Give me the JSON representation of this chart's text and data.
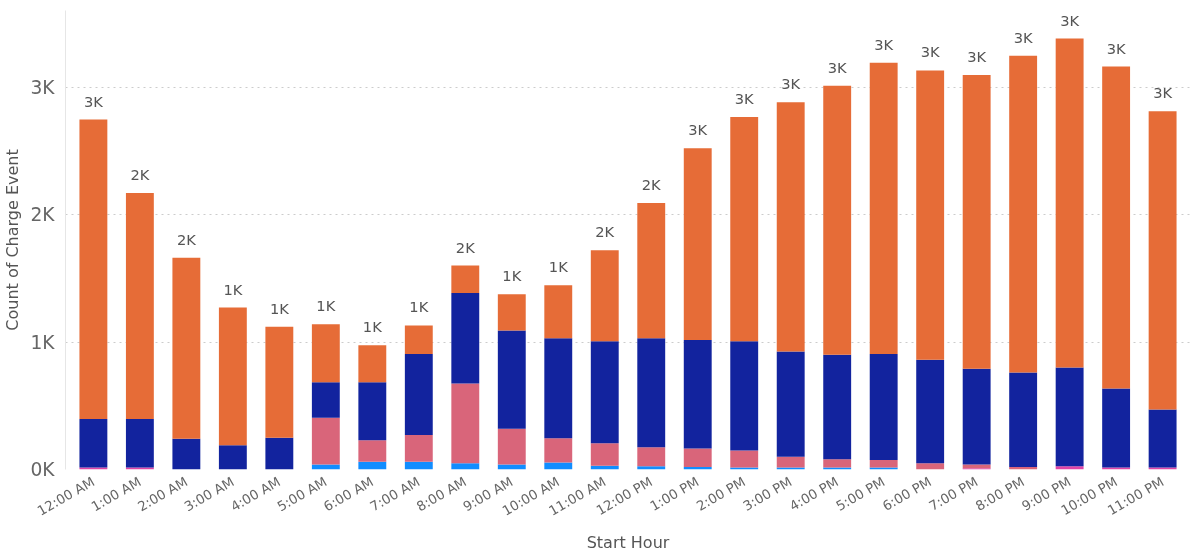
{
  "chart_data": {
    "type": "bar",
    "stacked": true,
    "xlabel": "Start Hour",
    "ylabel": "Count of Charge Event",
    "categories": [
      "12:00 AM",
      "1:00 AM",
      "2:00 AM",
      "3:00 AM",
      "4:00 AM",
      "5:00 AM",
      "6:00 AM",
      "7:00 AM",
      "8:00 AM",
      "9:00 AM",
      "10:00 AM",
      "11:00 AM",
      "12:00 PM",
      "1:00 PM",
      "2:00 PM",
      "3:00 PM",
      "4:00 PM",
      "5:00 PM",
      "6:00 PM",
      "7:00 PM",
      "8:00 PM",
      "9:00 PM",
      "10:00 PM",
      "11:00 PM"
    ],
    "series": [
      {
        "color": "#118dff",
        "values": [
          0,
          0,
          0,
          0,
          0,
          40,
          60,
          60,
          50,
          40,
          55,
          30,
          25,
          20,
          15,
          15,
          15,
          15,
          null,
          0,
          0,
          0,
          0,
          0
        ]
      },
      {
        "color": "#e044a7",
        "values": [
          15,
          15,
          null,
          0,
          0,
          0,
          0,
          0,
          0,
          0,
          0,
          0,
          0,
          0,
          0,
          0,
          0,
          0,
          0,
          10,
          null,
          25,
          15,
          15
        ]
      },
      {
        "color": "#d9657a",
        "values": [
          0,
          0,
          0,
          0,
          0,
          365,
          170,
          210,
          625,
          280,
          190,
          175,
          150,
          145,
          135,
          85,
          65,
          60,
          50,
          30,
          20,
          0,
          0,
          0
        ]
      },
      {
        "color": "#12239e",
        "values": [
          381,
          381,
          242,
          190,
          250,
          280,
          455,
          635,
          710,
          770,
          785,
          800,
          855,
          850,
          855,
          825,
          820,
          830,
          810,
          750,
          740,
          775,
          620,
          455
        ]
      },
      {
        "color": "#e66c37",
        "values": [
          2349,
          1772,
          1418,
          1080,
          870,
          455,
          290,
          225,
          215,
          285,
          415,
          715,
          1060,
          1505,
          1760,
          1955,
          2110,
          2285,
          2270,
          2305,
          2485,
          2580,
          2525,
          2340
        ]
      }
    ],
    "totals": [
      "3K",
      "2K",
      "2K",
      "1K",
      "1K",
      "1K",
      "1K",
      "1K",
      "2K",
      "1K",
      "1K",
      "2K",
      "2K",
      "3K",
      "3K",
      "3K",
      "3K",
      "3K",
      "3K",
      "3K",
      "3K",
      "3K",
      "3K",
      "3K"
    ],
    "ylim": [
      0,
      3600
    ],
    "yticks": [
      {
        "value": 0,
        "label": "0K"
      },
      {
        "value": 1000,
        "label": "1K"
      },
      {
        "value": 2000,
        "label": "2K"
      },
      {
        "value": 3000,
        "label": "3K"
      }
    ],
    "grid": "y"
  }
}
